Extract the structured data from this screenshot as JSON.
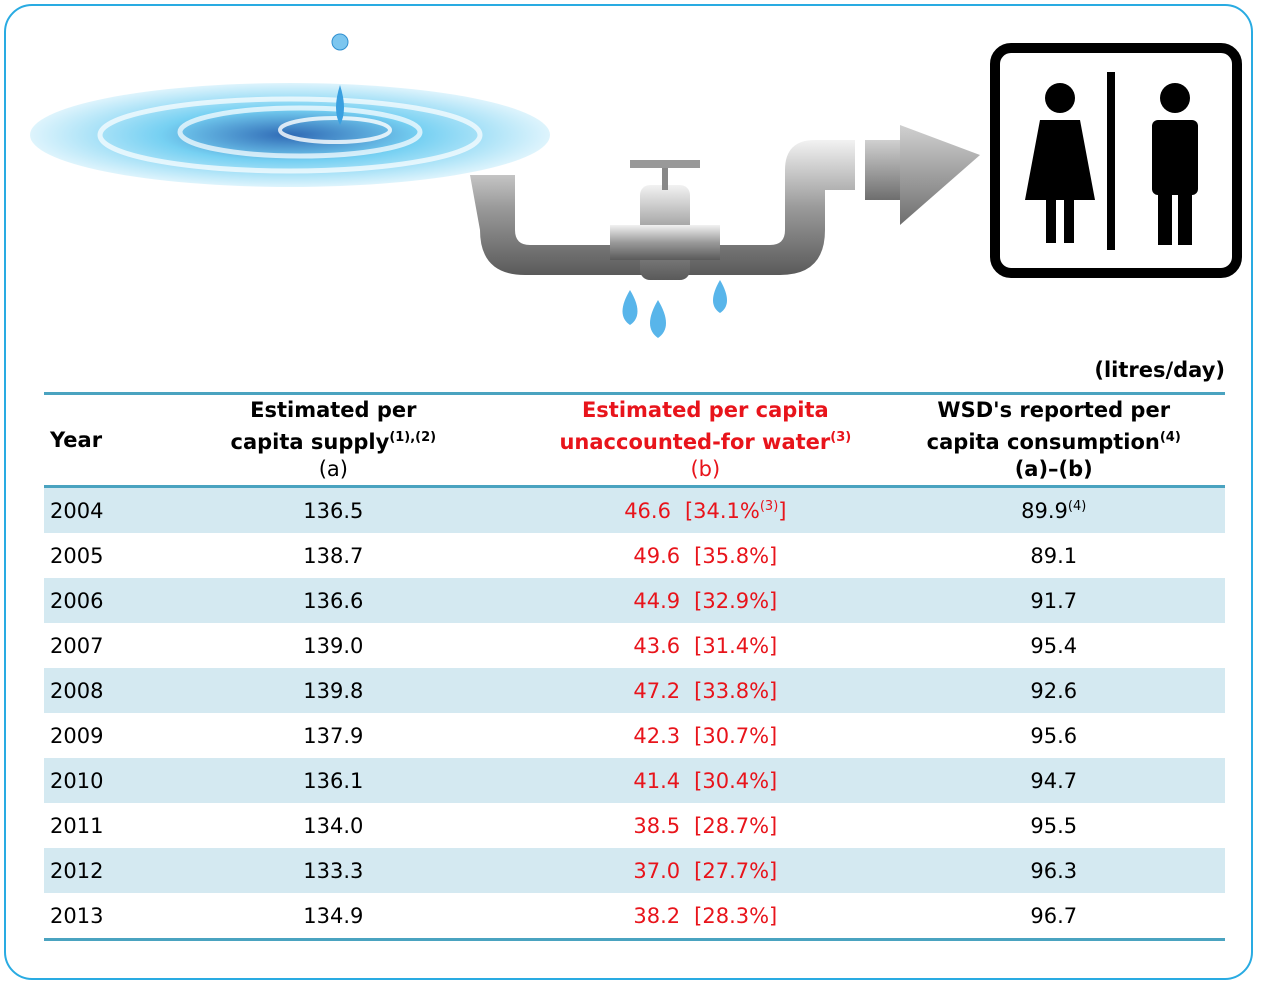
{
  "unit": "(litres/day)",
  "table": {
    "headers": [
      {
        "lines": [
          "Year"
        ],
        "note": null,
        "sub": null
      },
      {
        "lines": [
          "Estimated per",
          "capita supply"
        ],
        "note": "(1),(2)",
        "sub": "(a)"
      },
      {
        "lines": [
          "Estimated per capita",
          "unaccounted-for water"
        ],
        "note": "(3)",
        "sub": "(b)"
      },
      {
        "lines": [
          "WSD's reported per",
          "capita consumption"
        ],
        "note": "(4)",
        "sub": "(a)–(b)"
      }
    ],
    "rows": [
      {
        "year": "2004",
        "supply": "136.5",
        "unaccounted": "46.6",
        "share": "[34.1%",
        "share_note": "(3)",
        "share_close": "]",
        "consumption": "89.9",
        "consumption_note": "(4)"
      },
      {
        "year": "2005",
        "supply": "138.7",
        "unaccounted": "49.6",
        "share": "[35.8%]",
        "consumption": "89.1"
      },
      {
        "year": "2006",
        "supply": "136.6",
        "unaccounted": "44.9",
        "share": "[32.9%]",
        "consumption": "91.7"
      },
      {
        "year": "2007",
        "supply": "139.0",
        "unaccounted": "43.6",
        "share": "[31.4%]",
        "consumption": "95.4"
      },
      {
        "year": "2008",
        "supply": "139.8",
        "unaccounted": "47.2",
        "share": "[33.8%]",
        "consumption": "92.6"
      },
      {
        "year": "2009",
        "supply": "137.9",
        "unaccounted": "42.3",
        "share": "[30.7%]",
        "consumption": "95.6"
      },
      {
        "year": "2010",
        "supply": "136.1",
        "unaccounted": "41.4",
        "share": "[30.4%]",
        "consumption": "94.7"
      },
      {
        "year": "2011",
        "supply": "134.0",
        "unaccounted": "38.5",
        "share": "[28.7%]",
        "consumption": "95.5"
      },
      {
        "year": "2012",
        "supply": "133.3",
        "unaccounted": "37.0",
        "share": "[27.7%]",
        "consumption": "96.3"
      },
      {
        "year": "2013",
        "supply": "134.9",
        "unaccounted": "38.2",
        "share": "[28.3%]",
        "consumption": "96.7"
      }
    ]
  }
}
